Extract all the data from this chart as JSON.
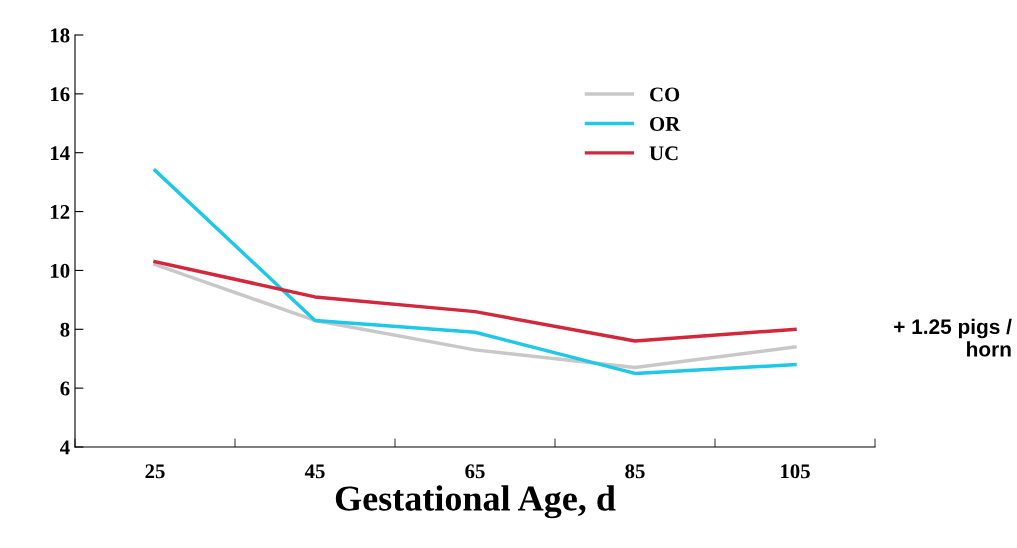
{
  "chart_data": {
    "type": "line",
    "xlabel": "Gestational Age, d",
    "categories": [
      "25",
      "45",
      "65",
      "85",
      "105"
    ],
    "series": [
      {
        "name": "CO",
        "color": "#c8c8c8",
        "values": [
          10.2,
          8.3,
          7.3,
          6.7,
          7.4
        ]
      },
      {
        "name": "OR",
        "color": "#1ec8e6",
        "values": [
          13.4,
          8.3,
          7.9,
          6.5,
          6.8
        ]
      },
      {
        "name": "UC",
        "color": "#d2283c",
        "values": [
          10.3,
          9.1,
          8.6,
          7.6,
          8.0
        ]
      }
    ],
    "ylim": [
      4,
      18
    ],
    "yticks": [
      4,
      6,
      8,
      10,
      12,
      14,
      16,
      18
    ],
    "annotations": [
      "+ 1.25 pigs /\nhorn"
    ],
    "legend": "top right",
    "grid": false,
    "marker": "none",
    "line_style": "solid"
  }
}
